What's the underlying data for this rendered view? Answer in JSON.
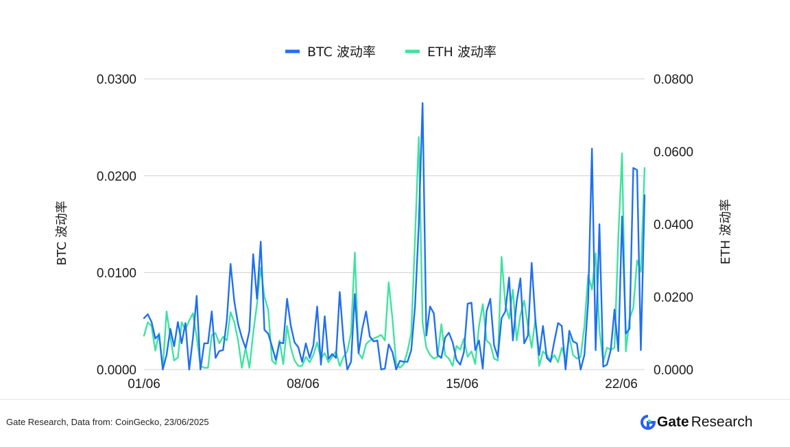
{
  "chart_data": {
    "type": "line",
    "legend": {
      "placement": "top-center"
    },
    "grid": true,
    "x_ticks": [
      "01/06",
      "08/06",
      "15/06",
      "22/06"
    ],
    "y_left": {
      "label": "BTC 波动率",
      "ticks": [
        "0.0000",
        "0.0100",
        "0.0200",
        "0.0300"
      ],
      "range": [
        0,
        0.03
      ]
    },
    "y_right": {
      "label": "ETH 波动率",
      "ticks": [
        "0.0000",
        "0.0200",
        "0.0400",
        "0.0600",
        "0.0800"
      ],
      "range": [
        0,
        0.08
      ]
    },
    "series": [
      {
        "name": "BTC 波动率",
        "color": "#1f6ff2",
        "axis": "left",
        "values": [
          0.0053,
          0.0057,
          0.0049,
          0.0032,
          0.0036,
          0.0,
          0.0015,
          0.0042,
          0.0024,
          0.0049,
          0.0027,
          0.0048,
          0.0,
          0.0033,
          0.0076,
          0.0,
          0.0027,
          0.0027,
          0.006,
          0.0012,
          0.0019,
          0.002,
          0.0051,
          0.0109,
          0.007,
          0.0047,
          0.0033,
          0.0022,
          0.004,
          0.0119,
          0.0073,
          0.0132,
          0.0041,
          0.0037,
          0.0024,
          0.001,
          0.0028,
          0.0027,
          0.0073,
          0.0045,
          0.0028,
          0.0023,
          0.0008,
          0.0027,
          0.0012,
          0.0025,
          0.0065,
          0.0005,
          0.0055,
          0.0011,
          0.0016,
          0.0012,
          0.008,
          0.003,
          0.0,
          0.0008,
          0.0078,
          0.0017,
          0.0042,
          0.006,
          0.0034,
          0.0029,
          0.003,
          0.0,
          0.0001,
          0.0026,
          0.0018,
          0.0,
          0.0009,
          0.0008,
          0.0008,
          0.002,
          0.0065,
          0.015,
          0.0275,
          0.0035,
          0.0065,
          0.0058,
          0.0015,
          0.0012,
          0.0033,
          0.0038,
          0.0028,
          0.001,
          0.0005,
          0.0018,
          0.0068,
          0.0069,
          0.002,
          0.003,
          0.0001,
          0.006,
          0.0073,
          0.0025,
          0.0013,
          0.0053,
          0.006,
          0.0095,
          0.003,
          0.007,
          0.0094,
          0.0027,
          0.0035,
          0.011,
          0.005,
          0.0015,
          0.0045,
          0.0012,
          0.0008,
          0.0029,
          0.0048,
          0.0045,
          0.0,
          0.004,
          0.0029,
          0.0027,
          0.0,
          0.0015,
          0.007,
          0.0228,
          0.002,
          0.015,
          0.0003,
          0.0005,
          0.002,
          0.0062,
          0.0019,
          0.0158,
          0.0037,
          0.0042,
          0.0208,
          0.0206,
          0.002,
          0.018
        ]
      },
      {
        "name": "ETH 波动率",
        "color": "#3ee3a0",
        "axis": "right",
        "values": [
          0.0093,
          0.013,
          0.012,
          0.0052,
          0.01,
          0.0003,
          0.016,
          0.009,
          0.0025,
          0.0033,
          0.013,
          0.011,
          0.0135,
          0.0155,
          0.009,
          0.001,
          0.0005,
          0.0005,
          0.0095,
          0.01,
          0.0072,
          0.009,
          0.008,
          0.0158,
          0.013,
          0.008,
          0.0005,
          0.006,
          0.0005,
          0.01,
          0.018,
          0.028,
          0.02,
          0.0165,
          0.0025,
          0.0015,
          0.008,
          0.0015,
          0.012,
          0.006,
          0.0025,
          0.001,
          0.001,
          0.0035,
          0.002,
          0.004,
          0.0075,
          0.003,
          0.0045,
          0.002,
          0.0035,
          0.005,
          0.001,
          0.0035,
          0.005,
          0.01,
          0.0322,
          0.0045,
          0.003,
          0.007,
          0.008,
          0.0085,
          0.009,
          0.0095,
          0.008,
          0.024,
          0.014,
          0.0015,
          0.0005,
          0.0015,
          0.005,
          0.01,
          0.036,
          0.064,
          0.013,
          0.006,
          0.004,
          0.003,
          0.0035,
          0.0125,
          0.004,
          0.003,
          0.001,
          0.0065,
          0.0055,
          0.0085,
          0.0035,
          0.005,
          0.0015,
          0.012,
          0.018,
          0.008,
          0.007,
          0.003,
          0.0025,
          0.031,
          0.018,
          0.014,
          0.022,
          0.008,
          0.015,
          0.019,
          0.012,
          0.006,
          0.014,
          0.001,
          0.005,
          0.004,
          0.0025,
          0.004,
          0.002,
          0.006,
          0.003,
          0.009,
          0.004,
          0.003,
          0.0035,
          0.012,
          0.026,
          0.022,
          0.032,
          0.011,
          0.002,
          0.006,
          0.0055,
          0.006,
          0.036,
          0.0595,
          0.005,
          0.014,
          0.017,
          0.03,
          0.027,
          0.0555
        ]
      }
    ]
  },
  "footer": {
    "source": "Gate Research, Data from: CoinGecko, 23/06/2025",
    "brand_bold": "Gate",
    "brand_rest": "Research"
  }
}
